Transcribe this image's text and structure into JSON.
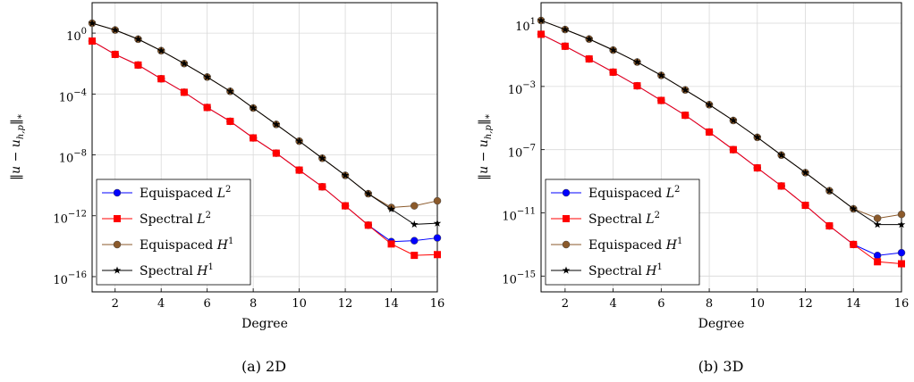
{
  "figure": {
    "captions": [
      "(a) 2D",
      "(b) 3D"
    ]
  },
  "chart_data": [
    {
      "type": "line",
      "caption": "(a) 2D",
      "xlabel": "Degree",
      "ylabel": "‖u − u_{h,p}‖_*",
      "ylabel_parts": {
        "open": "‖",
        "u": "u",
        "minus": " − ",
        "u2": "u",
        "sub": "h,p",
        "close": "‖",
        "star": "*"
      },
      "yscale": "log",
      "xlim": [
        1,
        16
      ],
      "ylim": [
        1e-17,
        100.0
      ],
      "x_ticks": [
        2,
        4,
        6,
        8,
        10,
        12,
        14,
        16
      ],
      "y_ticks": [
        {
          "value": 1,
          "base": "10",
          "exp": "0"
        },
        {
          "value": 0.0001,
          "base": "10",
          "exp": "−4"
        },
        {
          "value": 1e-08,
          "base": "10",
          "exp": "−8"
        },
        {
          "value": 1e-12,
          "base": "10",
          "exp": "−12"
        },
        {
          "value": 1e-16,
          "base": "10",
          "exp": "−16"
        }
      ],
      "grid": true,
      "legend_position": "lower-left",
      "x": [
        1,
        2,
        3,
        4,
        5,
        6,
        7,
        8,
        9,
        10,
        11,
        12,
        13,
        14,
        15,
        16
      ],
      "series": [
        {
          "name": "Equispaced",
          "sup": "2",
          "sym": "L",
          "color": "#0000ff",
          "marker": "circle",
          "values": [
            0.3,
            0.04,
            0.008,
            0.001,
            0.00013,
            1.3e-05,
            1.6e-06,
            1.3e-07,
            1.3e-08,
            1e-09,
            8e-11,
            4.5e-12,
            2.4e-13,
            2e-14,
            2.3e-14,
            3.5e-14
          ]
        },
        {
          "name": "Spectral",
          "sup": "2",
          "sym": "L",
          "color": "#ff0000",
          "marker": "square",
          "values": [
            0.3,
            0.04,
            0.008,
            0.001,
            0.00013,
            1.3e-05,
            1.6e-06,
            1.3e-07,
            1.3e-08,
            1e-09,
            8e-11,
            4.5e-12,
            2.4e-13,
            1.4e-14,
            2.5e-15,
            2.8e-15
          ]
        },
        {
          "name": "Equispaced",
          "sup": "1",
          "sym": "H",
          "color": "#8b5a2b",
          "marker": "circle",
          "values": [
            4.5,
            1.6,
            0.4,
            0.07,
            0.01,
            0.0013,
            0.00015,
            1.2e-05,
            1e-06,
            8e-08,
            6e-09,
            4.5e-10,
            2.8e-11,
            3.5e-12,
            4.5e-12,
            9.5e-12
          ]
        },
        {
          "name": "Spectral",
          "sup": "1",
          "sym": "H",
          "color": "#000000",
          "marker": "star",
          "values": [
            4.5,
            1.6,
            0.4,
            0.07,
            0.01,
            0.0013,
            0.00015,
            1.2e-05,
            1e-06,
            8e-08,
            6e-09,
            4.5e-10,
            2.8e-11,
            2.7e-12,
            2.7e-13,
            3.2e-13
          ]
        }
      ]
    },
    {
      "type": "line",
      "caption": "(b) 3D",
      "xlabel": "Degree",
      "ylabel": "‖u − u_{h,p}‖_*",
      "ylabel_parts": {
        "open": "‖",
        "u": "u",
        "minus": " − ",
        "u2": "u",
        "sub": "h,p",
        "close": "‖",
        "star": "*"
      },
      "yscale": "log",
      "xlim": [
        1,
        16
      ],
      "ylim": [
        1e-16,
        200.0
      ],
      "x_ticks": [
        2,
        4,
        6,
        8,
        10,
        12,
        14,
        16
      ],
      "y_ticks": [
        {
          "value": 10,
          "base": "10",
          "exp": "1"
        },
        {
          "value": 0.001,
          "base": "10",
          "exp": "−3"
        },
        {
          "value": 1e-07,
          "base": "10",
          "exp": "−7"
        },
        {
          "value": 1e-11,
          "base": "10",
          "exp": "−11"
        },
        {
          "value": 1e-15,
          "base": "10",
          "exp": "−15"
        }
      ],
      "grid": true,
      "legend_position": "lower-left",
      "x": [
        1,
        2,
        3,
        4,
        5,
        6,
        7,
        8,
        9,
        10,
        11,
        12,
        13,
        14,
        15,
        16
      ],
      "series": [
        {
          "name": "Equispaced",
          "sup": "2",
          "sym": "L",
          "color": "#0000ff",
          "marker": "circle",
          "values": [
            2.0,
            0.35,
            0.055,
            0.008,
            0.0011,
            0.00013,
            1.5e-05,
            1.3e-06,
            1e-07,
            7e-09,
            5e-10,
            3e-11,
            1.5e-12,
            1e-13,
            2e-14,
            3e-14
          ]
        },
        {
          "name": "Spectral",
          "sup": "2",
          "sym": "L",
          "color": "#ff0000",
          "marker": "square",
          "values": [
            2.0,
            0.35,
            0.055,
            0.008,
            0.0011,
            0.00013,
            1.5e-05,
            1.3e-06,
            1e-07,
            7e-09,
            5e-10,
            3e-11,
            1.5e-12,
            1e-13,
            8e-15,
            6e-15
          ]
        },
        {
          "name": "Equispaced",
          "sup": "1",
          "sym": "H",
          "color": "#8b5a2b",
          "marker": "circle",
          "values": [
            15,
            4,
            1.0,
            0.2,
            0.035,
            0.005,
            0.0006,
            7e-05,
            7e-06,
            6e-07,
            4.5e-08,
            3.5e-09,
            2.5e-10,
            1.8e-11,
            4.5e-12,
            8e-12
          ]
        },
        {
          "name": "Spectral",
          "sup": "1",
          "sym": "H",
          "color": "#000000",
          "marker": "star",
          "values": [
            15,
            4,
            1.0,
            0.2,
            0.035,
            0.005,
            0.0006,
            7e-05,
            7e-06,
            6e-07,
            4.5e-08,
            3.5e-09,
            2.5e-10,
            1.8e-11,
            1.8e-12,
            1.8e-12
          ]
        }
      ]
    }
  ]
}
